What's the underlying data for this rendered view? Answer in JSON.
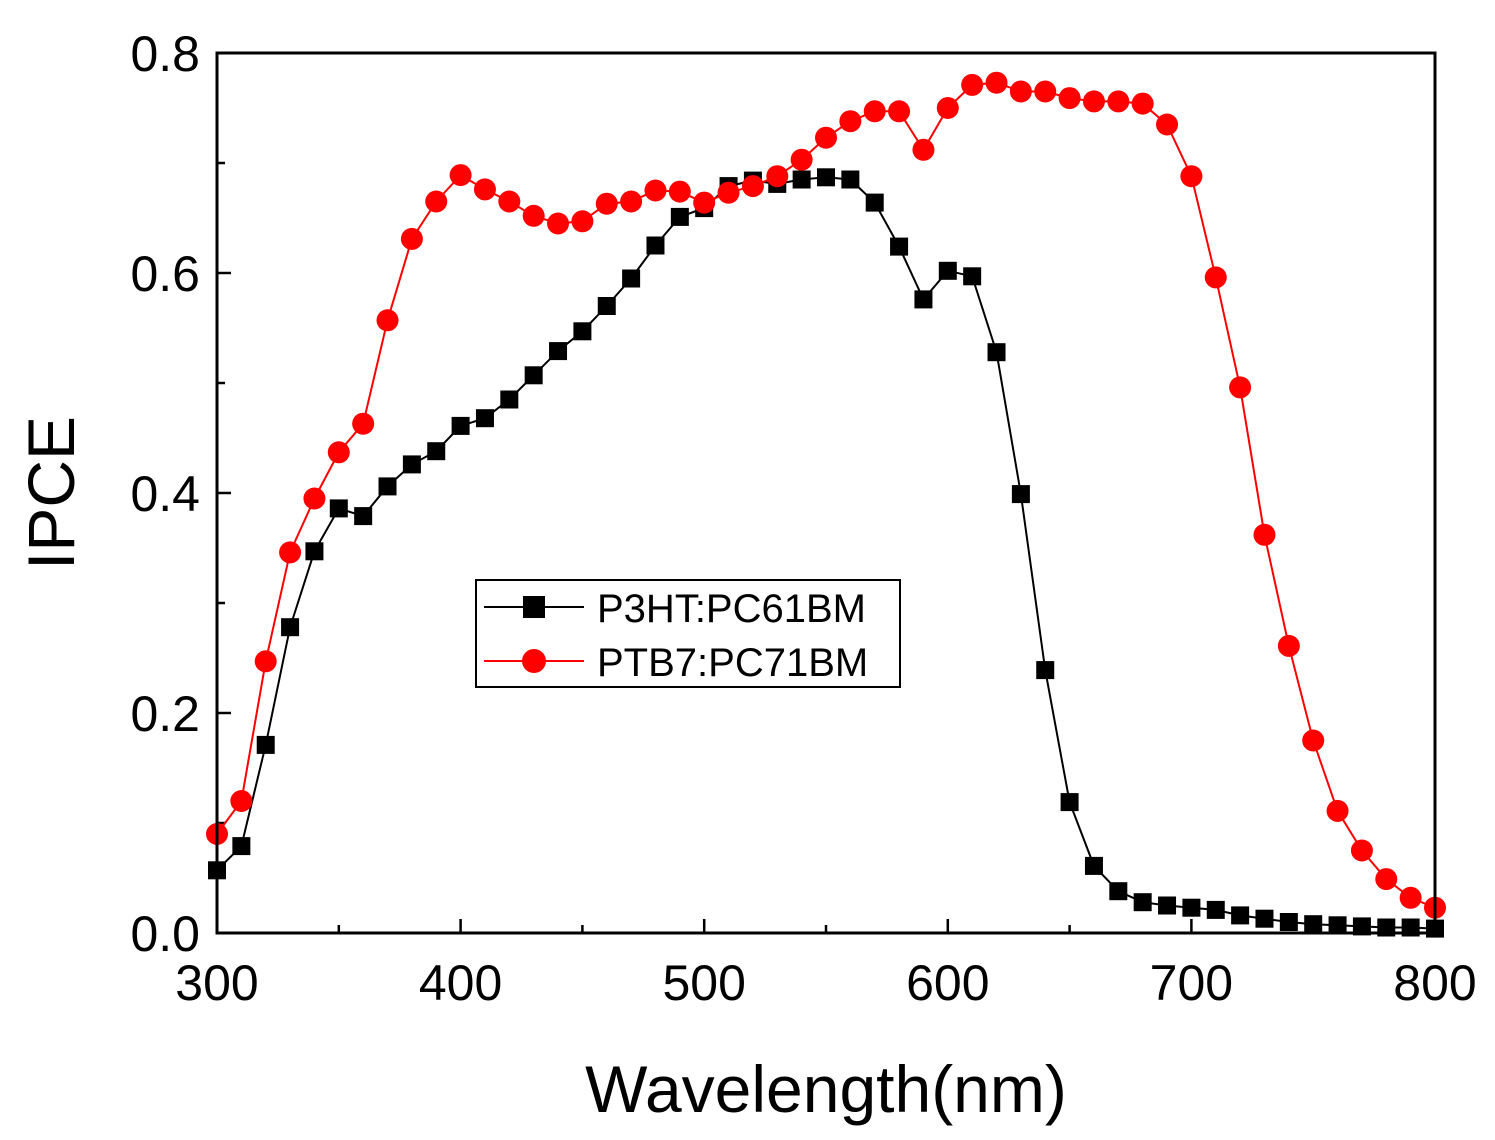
{
  "chart_data": {
    "type": "line",
    "title": "",
    "xlabel": "Wavelength(nm)",
    "ylabel": "IPCE",
    "xlim": [
      300,
      800
    ],
    "ylim": [
      0.0,
      0.8
    ],
    "xticks": [
      "300",
      "400",
      "500",
      "600",
      "700",
      "800"
    ],
    "xtick_values": [
      300,
      400,
      500,
      600,
      700,
      800
    ],
    "yticks": [
      "0.0",
      "0.2",
      "0.4",
      "0.6",
      "0.8"
    ],
    "ytick_values": [
      0.0,
      0.2,
      0.4,
      0.6,
      0.8
    ],
    "grid": false,
    "legend_position": "center-left",
    "x": [
      300,
      310,
      320,
      330,
      340,
      350,
      360,
      370,
      380,
      390,
      400,
      410,
      420,
      430,
      440,
      450,
      460,
      470,
      480,
      490,
      500,
      510,
      520,
      530,
      540,
      550,
      560,
      570,
      580,
      590,
      600,
      610,
      620,
      630,
      640,
      650,
      660,
      670,
      680,
      690,
      700,
      710,
      720,
      730,
      740,
      750,
      760,
      770,
      780,
      790,
      800
    ],
    "series": [
      {
        "name": "P3HT:PC61BM",
        "color": "#000000",
        "marker": "square",
        "values": [
          0.057,
          0.079,
          0.171,
          0.278,
          0.347,
          0.386,
          0.379,
          0.406,
          0.426,
          0.438,
          0.461,
          0.468,
          0.485,
          0.507,
          0.529,
          0.547,
          0.57,
          0.595,
          0.625,
          0.651,
          0.659,
          0.679,
          0.684,
          0.681,
          0.685,
          0.687,
          0.685,
          0.664,
          0.624,
          0.576,
          0.602,
          0.597,
          0.528,
          0.399,
          0.239,
          0.119,
          0.061,
          0.038,
          0.028,
          0.025,
          0.023,
          0.021,
          0.016,
          0.013,
          0.01,
          0.008,
          0.007,
          0.006,
          0.005,
          0.005,
          0.004
        ]
      },
      {
        "name": "PTB7:PC71BM",
        "color": "#ff0000",
        "marker": "circle",
        "values": [
          0.09,
          0.12,
          0.247,
          0.346,
          0.395,
          0.437,
          0.463,
          0.557,
          0.631,
          0.665,
          0.689,
          0.676,
          0.665,
          0.652,
          0.645,
          0.647,
          0.663,
          0.665,
          0.675,
          0.674,
          0.664,
          0.673,
          0.679,
          0.688,
          0.703,
          0.723,
          0.738,
          0.747,
          0.747,
          0.712,
          0.75,
          0.771,
          0.773,
          0.765,
          0.765,
          0.759,
          0.756,
          0.756,
          0.754,
          0.735,
          0.688,
          0.596,
          0.496,
          0.362,
          0.261,
          0.175,
          0.111,
          0.075,
          0.049,
          0.032,
          0.023
        ]
      }
    ]
  }
}
